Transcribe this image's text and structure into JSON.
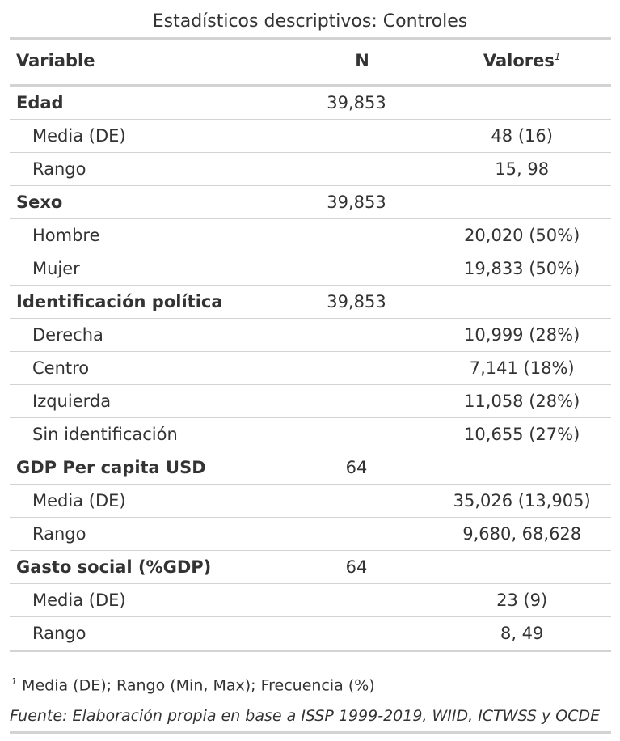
{
  "title": "Estadísticos descriptivos: Controles",
  "headers": {
    "variable": "Variable",
    "n": "N",
    "values": "Valores",
    "values_footnote_mark": "1"
  },
  "rows": [
    {
      "type": "group",
      "label": "Edad",
      "n": "39,853",
      "value": ""
    },
    {
      "type": "sub",
      "label": "Media (DE)",
      "n": "",
      "value": "48 (16)"
    },
    {
      "type": "sub",
      "label": "Rango",
      "n": "",
      "value": "15, 98"
    },
    {
      "type": "group",
      "label": "Sexo",
      "n": "39,853",
      "value": ""
    },
    {
      "type": "sub",
      "label": "Hombre",
      "n": "",
      "value": "20,020 (50%)"
    },
    {
      "type": "sub",
      "label": "Mujer",
      "n": "",
      "value": "19,833 (50%)"
    },
    {
      "type": "group",
      "label": "Identificación política",
      "n": "39,853",
      "value": ""
    },
    {
      "type": "sub",
      "label": "Derecha",
      "n": "",
      "value": "10,999 (28%)"
    },
    {
      "type": "sub",
      "label": "Centro",
      "n": "",
      "value": "7,141 (18%)"
    },
    {
      "type": "sub",
      "label": "Izquierda",
      "n": "",
      "value": "11,058 (28%)"
    },
    {
      "type": "sub",
      "label": "Sin identificación",
      "n": "",
      "value": "10,655 (27%)"
    },
    {
      "type": "group",
      "label": "GDP Per capita USD",
      "n": "64",
      "value": ""
    },
    {
      "type": "sub",
      "label": "Media (DE)",
      "n": "",
      "value": "35,026 (13,905)"
    },
    {
      "type": "sub",
      "label": "Rango",
      "n": "",
      "value": "9,680, 68,628"
    },
    {
      "type": "group",
      "label": "Gasto social (%GDP)",
      "n": "64",
      "value": ""
    },
    {
      "type": "sub",
      "label": "Media (DE)",
      "n": "",
      "value": "23 (9)"
    },
    {
      "type": "sub",
      "label": "Rango",
      "n": "",
      "value": "8, 49"
    }
  ],
  "footnote": {
    "mark": "1",
    "text": "Media (DE); Rango (Min, Max); Frecuencia (%)"
  },
  "source": "Fuente: Elaboración propia en base a ISSP 1999-2019, WIID, ICTWSS y OCDE"
}
